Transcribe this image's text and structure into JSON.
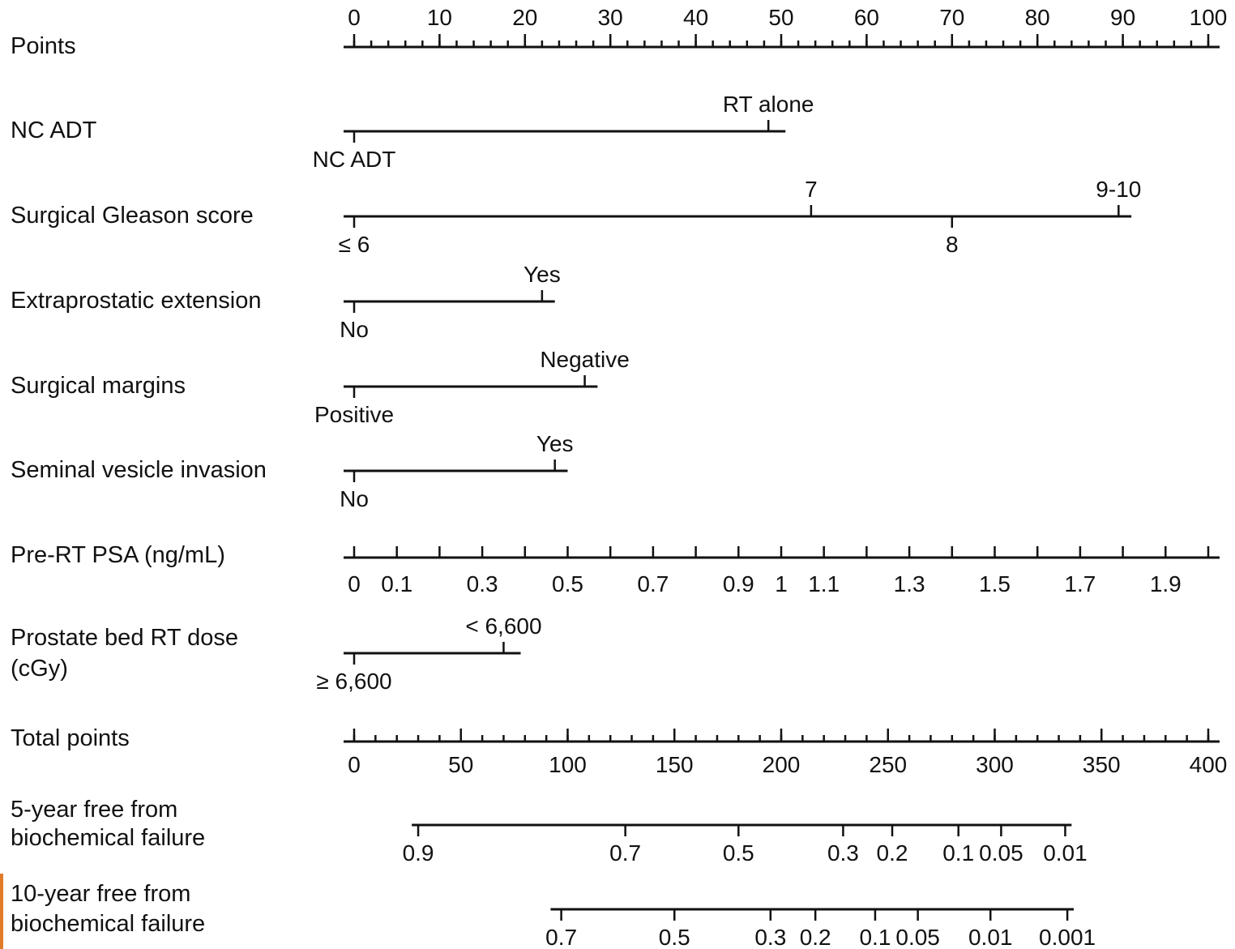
{
  "chart_data": {
    "type": "nomogram",
    "accent_color": "#e07b27",
    "rows": [
      {
        "id": "points",
        "label": [
          "Points"
        ],
        "kind": "scale",
        "ticks_above": true,
        "range": [
          0,
          100
        ],
        "labels": [
          "0",
          "10",
          "20",
          "30",
          "40",
          "50",
          "60",
          "70",
          "80",
          "90",
          "100"
        ],
        "label_values": [
          0,
          10,
          20,
          30,
          40,
          50,
          60,
          70,
          80,
          90,
          100
        ],
        "minor_step": 2
      },
      {
        "id": "nc-adt",
        "label": [
          "NC ADT"
        ],
        "kind": "categorical",
        "line_end_points": 50.5,
        "categories": [
          {
            "label": "NC ADT",
            "points": 0,
            "side": "below"
          },
          {
            "label": "RT alone",
            "points": 48.5,
            "side": "above"
          }
        ]
      },
      {
        "id": "gleason",
        "label": [
          "Surgical Gleason score"
        ],
        "kind": "categorical",
        "line_end_points": 91,
        "categories": [
          {
            "label": "≤ 6",
            "points": 0,
            "side": "below"
          },
          {
            "label": "7",
            "points": 53.5,
            "side": "above"
          },
          {
            "label": "8",
            "points": 70,
            "side": "below"
          },
          {
            "label": "9-10",
            "points": 89.5,
            "side": "above"
          }
        ]
      },
      {
        "id": "epe",
        "label": [
          "Extraprostatic extension"
        ],
        "kind": "categorical",
        "line_end_points": 23.5,
        "categories": [
          {
            "label": "No",
            "points": 0,
            "side": "below"
          },
          {
            "label": "Yes",
            "points": 22,
            "side": "above"
          }
        ]
      },
      {
        "id": "margins",
        "label": [
          "Surgical margins"
        ],
        "kind": "categorical",
        "line_end_points": 28.5,
        "categories": [
          {
            "label": "Positive",
            "points": 0,
            "side": "below"
          },
          {
            "label": "Negative",
            "points": 27,
            "side": "above"
          }
        ]
      },
      {
        "id": "svi",
        "label": [
          "Seminal vesicle invasion"
        ],
        "kind": "categorical",
        "line_end_points": 25,
        "categories": [
          {
            "label": "No",
            "points": 0,
            "side": "below"
          },
          {
            "label": "Yes",
            "points": 23.5,
            "side": "above"
          }
        ]
      },
      {
        "id": "psa",
        "label": [
          "Pre-RT PSA (ng/mL)"
        ],
        "kind": "continuous",
        "ticks_above": true,
        "ticks": [
          {
            "value": 0,
            "points": 0
          },
          {
            "value": 0.1,
            "points": 5
          },
          {
            "value": 0.2,
            "points": 10
          },
          {
            "value": 0.3,
            "points": 15
          },
          {
            "value": 0.4,
            "points": 20
          },
          {
            "value": 0.5,
            "points": 25
          },
          {
            "value": 0.6,
            "points": 30
          },
          {
            "value": 0.7,
            "points": 35
          },
          {
            "value": 0.8,
            "points": 40
          },
          {
            "value": 0.9,
            "points": 45
          },
          {
            "value": 1,
            "points": 50
          },
          {
            "value": 1.1,
            "points": 55
          },
          {
            "value": 1.2,
            "points": 60
          },
          {
            "value": 1.3,
            "points": 65
          },
          {
            "value": 1.4,
            "points": 70
          },
          {
            "value": 1.5,
            "points": 75
          },
          {
            "value": 1.6,
            "points": 80
          },
          {
            "value": 1.7,
            "points": 85
          },
          {
            "value": 1.8,
            "points": 90
          },
          {
            "value": 1.9,
            "points": 95
          },
          {
            "value": 2,
            "points": 100
          }
        ],
        "labels": [
          {
            "text": "0",
            "points": 0
          },
          {
            "text": "0.1",
            "points": 5
          },
          {
            "text": "0.3",
            "points": 15
          },
          {
            "text": "0.5",
            "points": 25
          },
          {
            "text": "0.7",
            "points": 35
          },
          {
            "text": "0.9",
            "points": 45
          },
          {
            "text": "1",
            "points": 50
          },
          {
            "text": "1.1",
            "points": 55
          },
          {
            "text": "1.3",
            "points": 65
          },
          {
            "text": "1.5",
            "points": 75
          },
          {
            "text": "1.7",
            "points": 85
          },
          {
            "text": "1.9",
            "points": 95
          }
        ]
      },
      {
        "id": "rt-dose",
        "label": [
          "Prostate bed RT dose",
          "(cGy)"
        ],
        "kind": "categorical",
        "line_end_points": 19.5,
        "categories": [
          {
            "label": "≥ 6,600",
            "points": 0,
            "side": "below"
          },
          {
            "label": "< 6,600",
            "points": 17.5,
            "side": "above"
          }
        ]
      },
      {
        "id": "total",
        "label": [
          "Total points"
        ],
        "kind": "total",
        "ticks_above": true,
        "range": [
          0,
          400
        ],
        "labels": [
          "0",
          "50",
          "100",
          "150",
          "200",
          "250",
          "300",
          "350",
          "400"
        ],
        "label_values": [
          0,
          50,
          100,
          150,
          200,
          250,
          300,
          350,
          400
        ],
        "minor_step": 10
      },
      {
        "id": "five-year",
        "label": [
          "5-year free from",
          "biochemical failure"
        ],
        "kind": "probability",
        "line_from_total": 27,
        "line_to_total": 336,
        "ticks": [
          {
            "text": "0.9",
            "total": 30
          },
          {
            "text": "0.7",
            "total": 127
          },
          {
            "text": "0.5",
            "total": 180
          },
          {
            "text": "0.3",
            "total": 229
          },
          {
            "text": "0.2",
            "total": 252
          },
          {
            "text": "0.1",
            "total": 283
          },
          {
            "text": "0.05",
            "total": 303
          },
          {
            "text": "0.01",
            "total": 333
          }
        ]
      },
      {
        "id": "ten-year",
        "label": [
          "10-year free from",
          "biochemical failure"
        ],
        "kind": "probability",
        "line_from_total": 92,
        "line_to_total": 337,
        "ticks": [
          {
            "text": "0.7",
            "total": 97
          },
          {
            "text": "0.5",
            "total": 150
          },
          {
            "text": "0.3",
            "total": 195
          },
          {
            "text": "0.2",
            "total": 216
          },
          {
            "text": "0.1",
            "total": 244
          },
          {
            "text": "0.05",
            "total": 264
          },
          {
            "text": "0.01",
            "total": 298
          },
          {
            "text": "0.001",
            "total": 334
          }
        ]
      }
    ]
  }
}
